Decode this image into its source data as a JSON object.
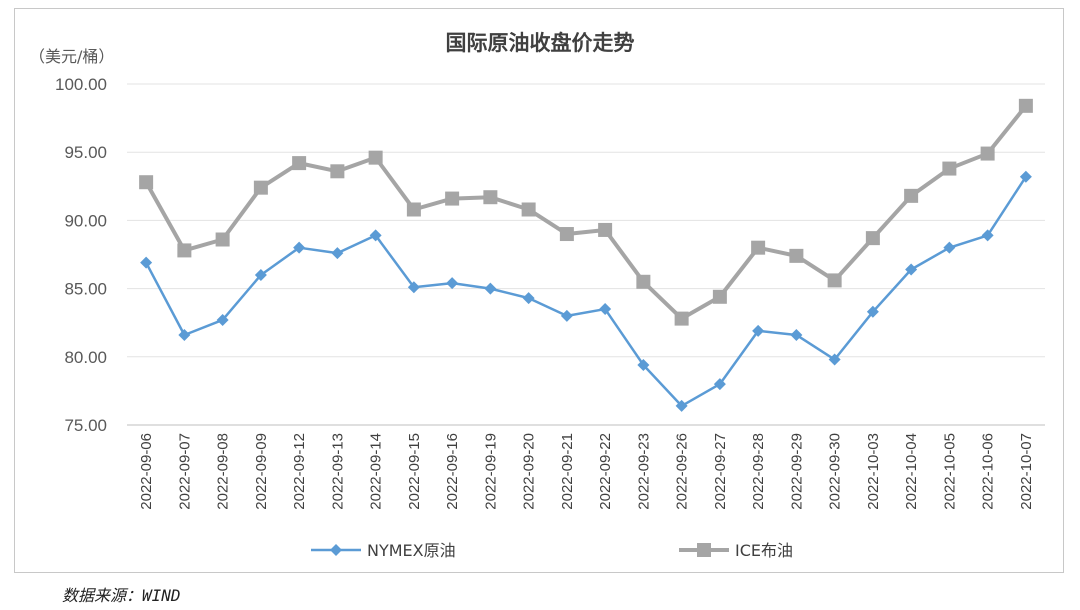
{
  "source_text": "数据来源：WIND",
  "chart_data": {
    "type": "line",
    "title": "国际原油收盘价走势",
    "unit_label": "（美元/桶）",
    "ylim": [
      75,
      100
    ],
    "yticks": [
      "100.00",
      "95.00",
      "90.00",
      "85.00",
      "80.00",
      "75.00"
    ],
    "ytick_values": [
      100,
      95,
      90,
      85,
      80,
      75
    ],
    "grid": true,
    "legend_position": "bottom",
    "categories": [
      "2022-09-06",
      "2022-09-07",
      "2022-09-08",
      "2022-09-09",
      "2022-09-12",
      "2022-09-13",
      "2022-09-14",
      "2022-09-15",
      "2022-09-16",
      "2022-09-19",
      "2022-09-20",
      "2022-09-21",
      "2022-09-22",
      "2022-09-23",
      "2022-09-26",
      "2022-09-27",
      "2022-09-28",
      "2022-09-29",
      "2022-09-30",
      "2022-10-03",
      "2022-10-04",
      "2022-10-05",
      "2022-10-06",
      "2022-10-07"
    ],
    "series": [
      {
        "name": "NYMEX原油",
        "color": "#5b9bd5",
        "marker": "diamond",
        "values": [
          86.9,
          81.6,
          82.7,
          86.0,
          88.0,
          87.6,
          88.9,
          85.1,
          85.4,
          85.0,
          84.3,
          83.0,
          83.5,
          79.4,
          76.4,
          78.0,
          81.9,
          81.6,
          79.8,
          83.3,
          86.4,
          88.0,
          88.9,
          93.2
        ]
      },
      {
        "name": "ICE布油",
        "color": "#a5a5a5",
        "marker": "square",
        "values": [
          92.8,
          87.8,
          88.6,
          92.4,
          94.2,
          93.6,
          94.6,
          90.8,
          91.6,
          91.7,
          90.8,
          89.0,
          89.3,
          85.5,
          82.8,
          84.4,
          88.0,
          87.4,
          85.6,
          88.7,
          91.8,
          93.8,
          94.9,
          98.4
        ]
      }
    ]
  }
}
